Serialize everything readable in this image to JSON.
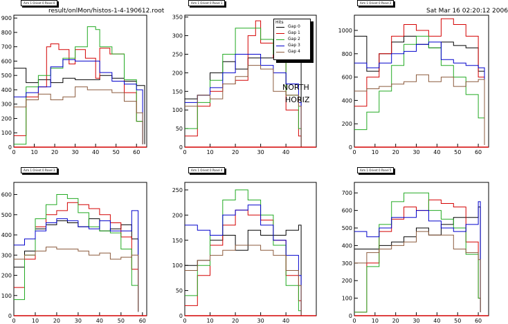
{
  "header": {
    "filename": "result/onlMon/histos-1-4-190612.root",
    "timestamp": "Sat Mar 16 02:20:12 2006"
  },
  "side_labels": [
    "NORTH",
    "HORIZ"
  ],
  "colors": {
    "gap0": "#000000",
    "gap1": "#d40000",
    "gap2": "#22aa22",
    "gap3": "#0000cc",
    "gap4": "#8b5a3c"
  },
  "legend": {
    "title": "Hits",
    "items": [
      {
        "label": "Gap 0",
        "color": "#000000"
      },
      {
        "label": "Gap 1",
        "color": "#d40000"
      },
      {
        "label": "Gap 2",
        "color": "#22aa22"
      },
      {
        "label": "Gap 3",
        "color": "#0000cc"
      },
      {
        "label": "Gap 4",
        "color": "#8b5a3c"
      }
    ]
  },
  "chart_data": [
    {
      "type": "line",
      "title": "Arm 1 Orient 0 Panel 0",
      "xlim": [
        0,
        65
      ],
      "ylim": [
        0,
        920
      ],
      "xticks": [
        0,
        10,
        20,
        30,
        40,
        50,
        60
      ],
      "yticks": [
        0,
        100,
        200,
        300,
        400,
        500,
        600,
        700,
        800,
        900
      ],
      "series": [
        {
          "name": "Gap 0",
          "color": "#000000",
          "x": [
            0,
            6,
            12,
            18,
            24,
            30,
            36,
            42,
            48,
            54,
            60,
            64
          ],
          "y": [
            550,
            450,
            470,
            450,
            480,
            470,
            470,
            500,
            480,
            460,
            430,
            20
          ]
        },
        {
          "name": "Gap 1",
          "color": "#d40000",
          "x": [
            0,
            6,
            12,
            16,
            18,
            22,
            27,
            30,
            35,
            40,
            42,
            47,
            54,
            60,
            63
          ],
          "y": [
            80,
            350,
            420,
            700,
            720,
            680,
            580,
            680,
            620,
            480,
            690,
            650,
            380,
            180,
            20
          ]
        },
        {
          "name": "Gap 2",
          "color": "#22aa22",
          "x": [
            0,
            6,
            12,
            18,
            24,
            30,
            36,
            40,
            42,
            48,
            54,
            60,
            63
          ],
          "y": [
            20,
            420,
            500,
            550,
            620,
            700,
            840,
            820,
            700,
            650,
            470,
            180,
            20
          ]
        },
        {
          "name": "Gap 3",
          "color": "#0000cc",
          "x": [
            0,
            6,
            12,
            18,
            24,
            30,
            36,
            42,
            48,
            54,
            60,
            63
          ],
          "y": [
            350,
            380,
            420,
            560,
            610,
            600,
            600,
            520,
            460,
            440,
            400,
            20
          ]
        },
        {
          "name": "Gap 4",
          "color": "#8b5a3c",
          "x": [
            0,
            6,
            12,
            18,
            24,
            30,
            36,
            42,
            48,
            54,
            60,
            63
          ],
          "y": [
            280,
            330,
            370,
            330,
            350,
            420,
            400,
            400,
            380,
            320,
            240,
            20
          ]
        }
      ]
    },
    {
      "type": "line",
      "title": "Arm 1 Orient 0 Panel 1",
      "xlim": [
        0,
        52
      ],
      "ylim": [
        0,
        355
      ],
      "xticks": [
        0,
        10,
        20,
        30,
        40
      ],
      "yticks": [
        0,
        50,
        100,
        150,
        200,
        250,
        300,
        350
      ],
      "series": [
        {
          "name": "Gap 0",
          "color": "#000000",
          "x": [
            0,
            5,
            10,
            15,
            20,
            25,
            30,
            35,
            40,
            45,
            46
          ],
          "y": [
            130,
            140,
            200,
            230,
            210,
            240,
            240,
            250,
            270,
            270,
            0
          ]
        },
        {
          "name": "Gap 1",
          "color": "#d40000",
          "x": [
            0,
            5,
            10,
            15,
            20,
            25,
            28,
            30,
            35,
            40,
            45,
            46
          ],
          "y": [
            30,
            110,
            150,
            170,
            180,
            300,
            340,
            280,
            240,
            100,
            30,
            0
          ]
        },
        {
          "name": "Gap 2",
          "color": "#22aa22",
          "x": [
            0,
            5,
            10,
            15,
            20,
            25,
            30,
            35,
            40,
            45,
            46
          ],
          "y": [
            50,
            120,
            180,
            250,
            320,
            320,
            290,
            250,
            140,
            50,
            0
          ]
        },
        {
          "name": "Gap 3",
          "color": "#0000cc",
          "x": [
            0,
            5,
            10,
            15,
            20,
            25,
            30,
            35,
            40,
            45,
            46
          ],
          "y": [
            120,
            140,
            160,
            200,
            250,
            250,
            220,
            200,
            170,
            120,
            0
          ]
        },
        {
          "name": "Gap 4",
          "color": "#8b5a3c",
          "x": [
            0,
            5,
            10,
            15,
            20,
            25,
            30,
            35,
            40,
            45,
            46
          ],
          "y": [
            110,
            140,
            130,
            170,
            190,
            220,
            210,
            150,
            140,
            110,
            0
          ]
        }
      ]
    },
    {
      "type": "line",
      "title": "Arm 1 Orient 0 Panel 2",
      "xlim": [
        0,
        65
      ],
      "ylim": [
        0,
        1130
      ],
      "xticks": [
        0,
        10,
        20,
        30,
        40,
        50,
        60
      ],
      "yticks": [
        0,
        200,
        400,
        600,
        800,
        1000
      ],
      "series": [
        {
          "name": "Gap 0",
          "color": "#000000",
          "x": [
            0,
            6,
            12,
            18,
            24,
            30,
            36,
            42,
            48,
            54,
            60,
            63
          ],
          "y": [
            950,
            650,
            800,
            900,
            950,
            880,
            850,
            900,
            870,
            850,
            650,
            20
          ]
        },
        {
          "name": "Gap 1",
          "color": "#d40000",
          "x": [
            0,
            6,
            12,
            18,
            24,
            30,
            36,
            42,
            48,
            54,
            60,
            63
          ],
          "y": [
            350,
            600,
            800,
            950,
            1050,
            1000,
            950,
            1100,
            1050,
            950,
            600,
            20
          ]
        },
        {
          "name": "Gap 2",
          "color": "#22aa22",
          "x": [
            0,
            6,
            12,
            18,
            24,
            30,
            36,
            42,
            48,
            54,
            60,
            63
          ],
          "y": [
            150,
            300,
            480,
            700,
            880,
            950,
            850,
            700,
            600,
            450,
            250,
            20
          ]
        },
        {
          "name": "Gap 3",
          "color": "#0000cc",
          "x": [
            0,
            6,
            12,
            18,
            24,
            30,
            36,
            42,
            48,
            54,
            60,
            63
          ],
          "y": [
            720,
            680,
            720,
            800,
            820,
            880,
            900,
            750,
            720,
            700,
            680,
            20
          ]
        },
        {
          "name": "Gap 4",
          "color": "#8b5a3c",
          "x": [
            0,
            6,
            12,
            18,
            24,
            30,
            36,
            42,
            48,
            54,
            60,
            63
          ],
          "y": [
            480,
            500,
            520,
            540,
            560,
            620,
            560,
            600,
            520,
            560,
            580,
            20
          ]
        }
      ]
    },
    {
      "type": "line",
      "title": "Arm 1 Orient 0 Panel 3",
      "xlim": [
        0,
        62
      ],
      "ylim": [
        0,
        660
      ],
      "xticks": [
        0,
        10,
        20,
        30,
        40,
        50,
        60
      ],
      "yticks": [
        0,
        100,
        200,
        300,
        400,
        500,
        600
      ],
      "series": [
        {
          "name": "Gap 0",
          "color": "#000000",
          "x": [
            0,
            5,
            10,
            15,
            20,
            25,
            30,
            35,
            40,
            45,
            50,
            55,
            58
          ],
          "y": [
            240,
            320,
            430,
            450,
            470,
            460,
            440,
            480,
            420,
            430,
            450,
            380,
            20
          ]
        },
        {
          "name": "Gap 1",
          "color": "#d40000",
          "x": [
            0,
            5,
            10,
            15,
            20,
            25,
            30,
            35,
            40,
            45,
            50,
            55,
            58
          ],
          "y": [
            140,
            280,
            440,
            500,
            520,
            560,
            550,
            530,
            500,
            460,
            390,
            230,
            20
          ]
        },
        {
          "name": "Gap 2",
          "color": "#22aa22",
          "x": [
            0,
            5,
            10,
            15,
            20,
            25,
            30,
            35,
            40,
            45,
            50,
            55,
            58
          ],
          "y": [
            80,
            300,
            480,
            550,
            600,
            580,
            510,
            440,
            420,
            410,
            330,
            150,
            20
          ]
        },
        {
          "name": "Gap 3",
          "color": "#0000cc",
          "x": [
            0,
            5,
            10,
            15,
            20,
            25,
            30,
            35,
            40,
            45,
            50,
            55,
            58
          ],
          "y": [
            350,
            380,
            420,
            460,
            480,
            470,
            440,
            430,
            470,
            420,
            420,
            520,
            20
          ]
        },
        {
          "name": "Gap 4",
          "color": "#8b5a3c",
          "x": [
            0,
            5,
            10,
            15,
            20,
            25,
            30,
            35,
            40,
            45,
            50,
            55,
            58
          ],
          "y": [
            280,
            300,
            320,
            340,
            330,
            330,
            320,
            300,
            310,
            280,
            290,
            300,
            20
          ]
        }
      ]
    },
    {
      "type": "line",
      "title": "Arm 1 Orient 0 Panel 4",
      "xlim": [
        0,
        52
      ],
      "ylim": [
        0,
        265
      ],
      "xticks": [
        0,
        10,
        20,
        30,
        40
      ],
      "yticks": [
        0,
        50,
        100,
        150,
        200,
        250
      ],
      "series": [
        {
          "name": "Gap 0",
          "color": "#000000",
          "x": [
            0,
            5,
            10,
            15,
            20,
            25,
            30,
            35,
            40,
            45,
            46
          ],
          "y": [
            100,
            110,
            150,
            160,
            130,
            170,
            160,
            160,
            170,
            180,
            0
          ]
        },
        {
          "name": "Gap 1",
          "color": "#d40000",
          "x": [
            0,
            5,
            10,
            15,
            20,
            25,
            30,
            35,
            40,
            45,
            46
          ],
          "y": [
            20,
            80,
            140,
            180,
            210,
            200,
            190,
            150,
            80,
            30,
            0
          ]
        },
        {
          "name": "Gap 2",
          "color": "#22aa22",
          "x": [
            0,
            5,
            10,
            15,
            20,
            25,
            30,
            35,
            40,
            45,
            46
          ],
          "y": [
            40,
            100,
            160,
            230,
            250,
            230,
            200,
            140,
            60,
            10,
            0
          ]
        },
        {
          "name": "Gap 3",
          "color": "#0000cc",
          "x": [
            0,
            5,
            10,
            15,
            20,
            25,
            30,
            35,
            40,
            45,
            46
          ],
          "y": [
            180,
            170,
            160,
            200,
            210,
            220,
            180,
            150,
            120,
            80,
            0
          ]
        },
        {
          "name": "Gap 4",
          "color": "#8b5a3c",
          "x": [
            0,
            5,
            10,
            15,
            20,
            25,
            30,
            35,
            40,
            45,
            46
          ],
          "y": [
            90,
            110,
            120,
            130,
            140,
            140,
            130,
            120,
            90,
            60,
            0
          ]
        }
      ]
    },
    {
      "type": "line",
      "title": "Arm 1 Orient 0 Panel 5",
      "xlim": [
        0,
        65
      ],
      "ylim": [
        0,
        760
      ],
      "xticks": [
        0,
        10,
        20,
        30,
        40,
        50,
        60
      ],
      "yticks": [
        0,
        100,
        200,
        300,
        400,
        500,
        600,
        700
      ],
      "series": [
        {
          "name": "Gap 0",
          "color": "#000000",
          "x": [
            0,
            6,
            12,
            18,
            24,
            30,
            36,
            42,
            48,
            54,
            60,
            61
          ],
          "y": [
            380,
            380,
            400,
            420,
            450,
            500,
            460,
            520,
            560,
            560,
            620,
            20
          ]
        },
        {
          "name": "Gap 1",
          "color": "#d40000",
          "x": [
            0,
            6,
            12,
            18,
            24,
            30,
            36,
            42,
            48,
            54,
            60,
            61
          ],
          "y": [
            20,
            300,
            480,
            550,
            620,
            600,
            660,
            640,
            620,
            420,
            100,
            20
          ]
        },
        {
          "name": "Gap 2",
          "color": "#22aa22",
          "x": [
            0,
            6,
            12,
            18,
            24,
            30,
            36,
            42,
            48,
            54,
            60,
            61
          ],
          "y": [
            20,
            280,
            520,
            650,
            700,
            700,
            600,
            550,
            500,
            350,
            100,
            20
          ]
        },
        {
          "name": "Gap 3",
          "color": "#0000cc",
          "x": [
            0,
            6,
            12,
            18,
            24,
            30,
            36,
            42,
            48,
            54,
            60,
            61
          ],
          "y": [
            480,
            450,
            500,
            560,
            560,
            600,
            540,
            500,
            480,
            520,
            650,
            20
          ]
        },
        {
          "name": "Gap 4",
          "color": "#8b5a3c",
          "x": [
            0,
            6,
            12,
            18,
            24,
            30,
            36,
            42,
            48,
            54,
            60,
            61
          ],
          "y": [
            300,
            360,
            380,
            400,
            420,
            480,
            460,
            460,
            380,
            360,
            320,
            20
          ]
        }
      ]
    }
  ]
}
